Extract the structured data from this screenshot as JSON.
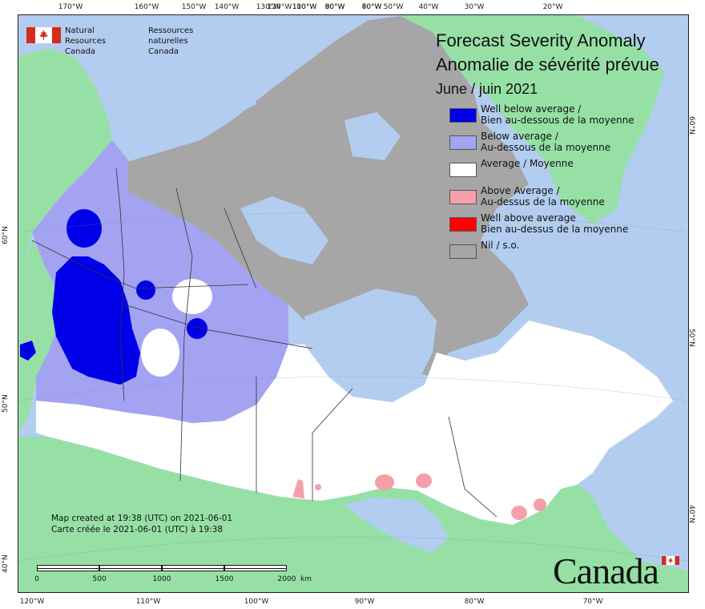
{
  "map": {
    "title_en": "Forecast Severity Anomaly",
    "title_fr": "Anomalie de sévérité prévue",
    "period": "June / juin 2021",
    "colors": {
      "ocean": "#b3cdf0",
      "other_land": "#96e0a6",
      "nil": "#a6a6a6",
      "average": "#ffffff",
      "below": "#a3a3f2",
      "well_below": "#0000e8",
      "above": "#f5a0a8",
      "well_above": "#ff0000",
      "border": "#333333"
    }
  },
  "legend": [
    {
      "label": "Well below average /\nBien au-dessous de la moyenne",
      "color": "#0000e8"
    },
    {
      "label": "Below average /\nAu-dessous de la moyenne",
      "color": "#a3a3f2"
    },
    {
      "label": "Average / Moyenne",
      "color": "#ffffff"
    },
    {
      "label": "Above Average /\nAu-dessus de la moyenne",
      "color": "#f5a0a8"
    },
    {
      "label": "Well above average\nBien au-dessus de la moyenne",
      "color": "#ff0000"
    },
    {
      "label": "Nil / s.o.",
      "color": "#a6a6a6"
    }
  ],
  "agency": {
    "name_en": "Natural Resources\nCanada",
    "name_fr": "Ressources naturelles\nCanada"
  },
  "credit": {
    "en": "Map created at 19:38 (UTC) on 2021-06-01",
    "fr": "Carte créée le 2021-06-01 (UTC) à 19:38"
  },
  "scale": {
    "labels": [
      "0",
      "500",
      "1000",
      "1500",
      "2000"
    ],
    "unit": "km"
  },
  "wordmark": "Canada",
  "graticule": {
    "top": [
      "170°W",
      "160°W",
      "150°W",
      "140°W",
      "130°W",
      "120°W",
      "110°W",
      "100°W",
      "90°W",
      "80°W",
      "70°W",
      "60°W",
      "50°W",
      "40°W",
      "30°W",
      "20°W"
    ],
    "bottom": [
      "120°W",
      "110°W",
      "100°W",
      "90°W",
      "80°W",
      "70°W"
    ],
    "left": [
      "60°N",
      "50°N",
      "40°N"
    ],
    "right": [
      "60°N",
      "50°N",
      "40°N"
    ]
  }
}
